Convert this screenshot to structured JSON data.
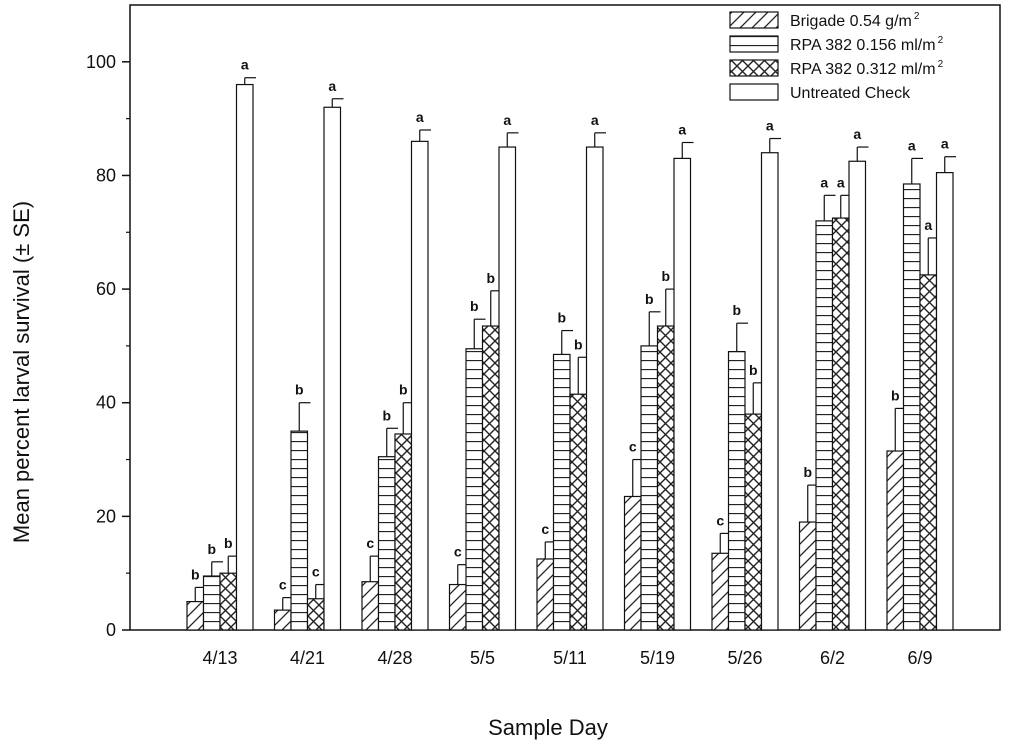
{
  "chart_data": {
    "type": "bar",
    "title": "",
    "xlabel": "Sample Day",
    "ylabel": "Mean percent larval survival (± SE)",
    "ylim": [
      0,
      110
    ],
    "yticks": [
      0,
      20,
      40,
      60,
      80,
      100
    ],
    "grid": false,
    "legend_position": "top-right",
    "categories": [
      "4/13",
      "4/21",
      "4/28",
      "5/5",
      "5/11",
      "5/19",
      "5/26",
      "6/2",
      "6/9"
    ],
    "series": [
      {
        "name": "Brigade 0.54 g/m",
        "name_superscript": "2",
        "pattern": "diagonal",
        "values": [
          5,
          3.5,
          8.5,
          8,
          12.5,
          23.5,
          13.5,
          19,
          31.5
        ],
        "errors": [
          2.5,
          2.2,
          4.5,
          3.5,
          3,
          6.5,
          3.5,
          6.5,
          7.5
        ],
        "sig_labels": [
          "b",
          "c",
          "c",
          "c",
          "c",
          "c",
          "c",
          "b",
          "b"
        ]
      },
      {
        "name": "RPA 382 0.156 ml/m",
        "name_superscript": "2",
        "pattern": "horizontal",
        "values": [
          9.5,
          35,
          30.5,
          49.5,
          48.5,
          50,
          49,
          72,
          78.5
        ],
        "errors": [
          2.5,
          5,
          5,
          5.2,
          4.2,
          6,
          5,
          4.5,
          4.5
        ],
        "sig_labels": [
          "b",
          "b",
          "b",
          "b",
          "b",
          "b",
          "b",
          "a",
          "a"
        ]
      },
      {
        "name": "RPA 382 0.312 ml/m",
        "name_superscript": "2",
        "pattern": "crosshatch",
        "values": [
          10,
          5.5,
          34.5,
          53.5,
          41.5,
          53.5,
          38,
          72.5,
          62.5
        ],
        "errors": [
          3,
          2.5,
          5.5,
          6.2,
          6.5,
          6.5,
          5.5,
          4,
          6.5
        ],
        "sig_labels": [
          "b",
          "c",
          "b",
          "b",
          "b",
          "b",
          "b",
          "a",
          "a"
        ]
      },
      {
        "name": "Untreated Check",
        "name_superscript": "",
        "pattern": "none",
        "values": [
          96,
          92,
          86,
          85,
          85,
          83,
          84,
          82.5,
          80.5
        ],
        "errors": [
          1.2,
          1.5,
          2,
          2.5,
          2.5,
          2.8,
          2.5,
          2.5,
          2.8
        ],
        "sig_labels": [
          "a",
          "a",
          "a",
          "a",
          "a",
          "a",
          "a",
          "a",
          "a"
        ]
      }
    ]
  }
}
